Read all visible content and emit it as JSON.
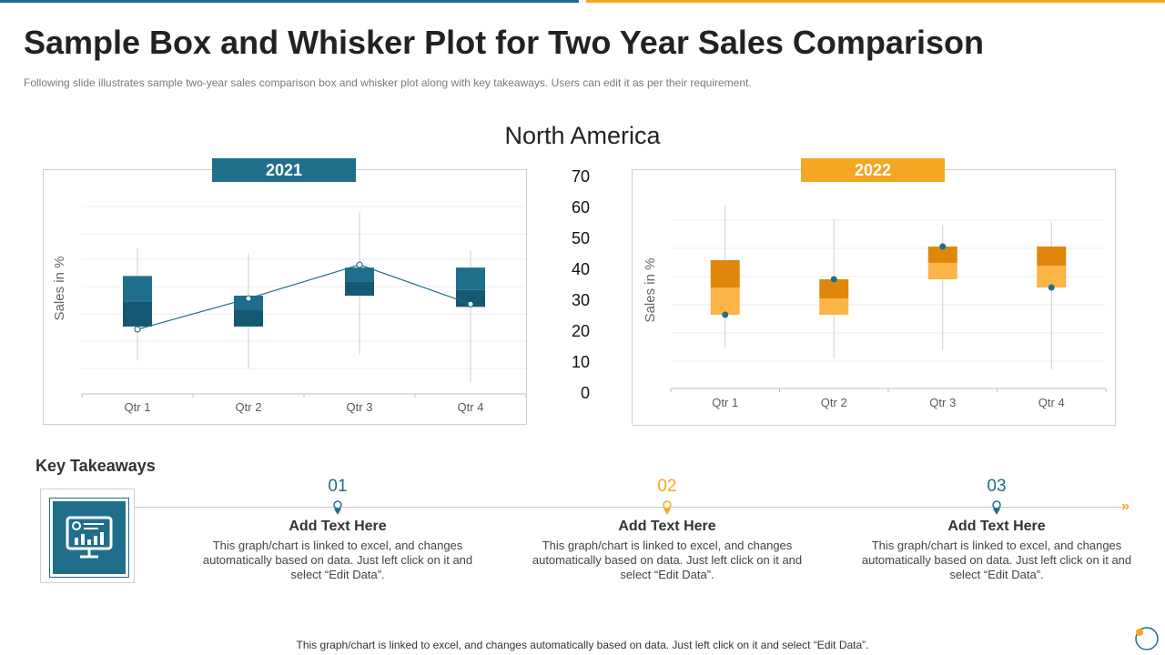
{
  "page": {
    "title": "Sample Box and Whisker Plot for Two Year Sales Comparison",
    "subtitle": "Following slide illustrates sample two-year sales comparison box and whisker plot along with key takeaways. Users can edit it as per their requirement.",
    "region": "North America",
    "footer": "This graph/chart is linked to excel, and changes automatically based on data. Just left click on it and select “Edit Data”."
  },
  "colors": {
    "blue": "#1f6e8c",
    "blue_dark": "#145872",
    "orange": "#f5a623",
    "orange_dark": "#e0870b",
    "orange_light": "#fbb448"
  },
  "center_axis": {
    "ticks": [
      "70",
      "60",
      "50",
      "40",
      "30",
      "20",
      "10",
      "0"
    ]
  },
  "chart_data": [
    {
      "type": "box",
      "title": "2021",
      "ylabel": "Sales in %",
      "xlabel": "",
      "ylim": [
        0,
        70
      ],
      "categories": [
        "Qtr 1",
        "Qtr 2",
        "Qtr 3",
        "Qtr 4"
      ],
      "boxes": [
        {
          "min": 12,
          "q1": 24,
          "median": 33,
          "q3": 42,
          "max": 52,
          "mean": 23
        },
        {
          "min": 9,
          "q1": 24,
          "median": 30,
          "q3": 35,
          "max": 50,
          "mean": 34
        },
        {
          "min": 14,
          "q1": 35,
          "median": 40,
          "q3": 45,
          "max": 65,
          "mean": 46
        },
        {
          "min": 4,
          "q1": 31,
          "median": 37,
          "q3": 45,
          "max": 51,
          "mean": 32
        }
      ],
      "connect_means": true
    },
    {
      "type": "box",
      "title": "2022",
      "ylabel": "Sales in %",
      "xlabel": "",
      "ylim": [
        0,
        70
      ],
      "categories": [
        "Qtr 1",
        "Qtr 2",
        "Qtr 3",
        "Qtr 4"
      ],
      "boxes": [
        {
          "min": 15,
          "q1": 27,
          "median": 37,
          "q3": 47,
          "max": 67,
          "mean": 27
        },
        {
          "min": 11,
          "q1": 27,
          "median": 33,
          "q3": 40,
          "max": 62,
          "mean": 40
        },
        {
          "min": 14,
          "q1": 40,
          "median": 46,
          "q3": 52,
          "max": 60,
          "mean": 52
        },
        {
          "min": 7,
          "q1": 37,
          "median": 45,
          "q3": 52,
          "max": 61,
          "mean": 37
        }
      ],
      "connect_means": false
    }
  ],
  "key_takeaways": {
    "title": "Key Takeaways",
    "items": [
      {
        "num": "01",
        "heading": "Add Text Here",
        "body": "This graph/chart is linked to excel, and changes automatically based on data. Just left click on it and select “Edit Data”."
      },
      {
        "num": "02",
        "heading": "Add Text Here",
        "body": "This graph/chart is linked to excel, and changes automatically based on data. Just left click on it and select “Edit Data”."
      },
      {
        "num": "03",
        "heading": "Add Text Here",
        "body": "This graph/chart is linked to excel, and changes automatically based on data. Just left click on it and select “Edit Data”."
      }
    ]
  },
  "icons": {
    "monitor": "monitor-chart-icon",
    "pin": "map-pin-icon",
    "arrow": "double-chevron-right-icon",
    "corner": "logo-ring-icon"
  }
}
